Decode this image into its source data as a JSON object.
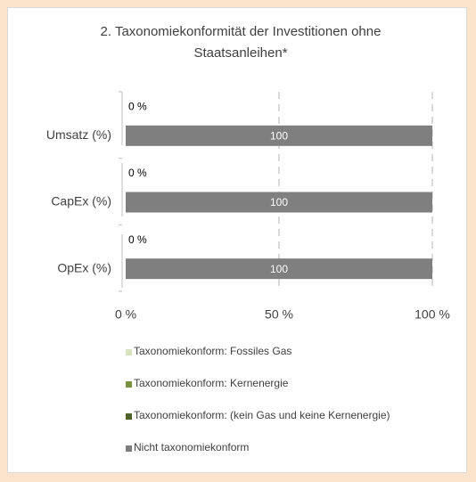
{
  "chart_data": {
    "type": "stacked_bar_horizontal",
    "title": "2. Taxonomiekonformität der Investitionen ohne Staatsanleihen*",
    "categories": [
      "Umsatz (%)",
      "CapEx (%)",
      "OpEx (%)"
    ],
    "series": [
      {
        "name": "Taxonomiekonform: Fossiles Gas",
        "color": "#d7e4bd",
        "values": [
          0,
          0,
          0
        ]
      },
      {
        "name": "Taxonomiekonform: Kernenergie",
        "color": "#77933c",
        "values": [
          0,
          0,
          0
        ]
      },
      {
        "name": "Taxonomiekonform: (kein Gas und keine Kernenergie)",
        "color": "#4f6228",
        "values": [
          0,
          0,
          0
        ],
        "value_labels": [
          "0 %",
          "0 %",
          "0 %"
        ]
      },
      {
        "name": "Nicht taxonomiekonform",
        "color": "#7f7f7f",
        "values": [
          100,
          100,
          100
        ]
      }
    ],
    "xlim": [
      0,
      100
    ],
    "xticks": [
      {
        "value": 0,
        "label": "0 %"
      },
      {
        "value": 50,
        "label": "50 %"
      },
      {
        "value": 100,
        "label": "100 %"
      }
    ],
    "grid": true
  }
}
